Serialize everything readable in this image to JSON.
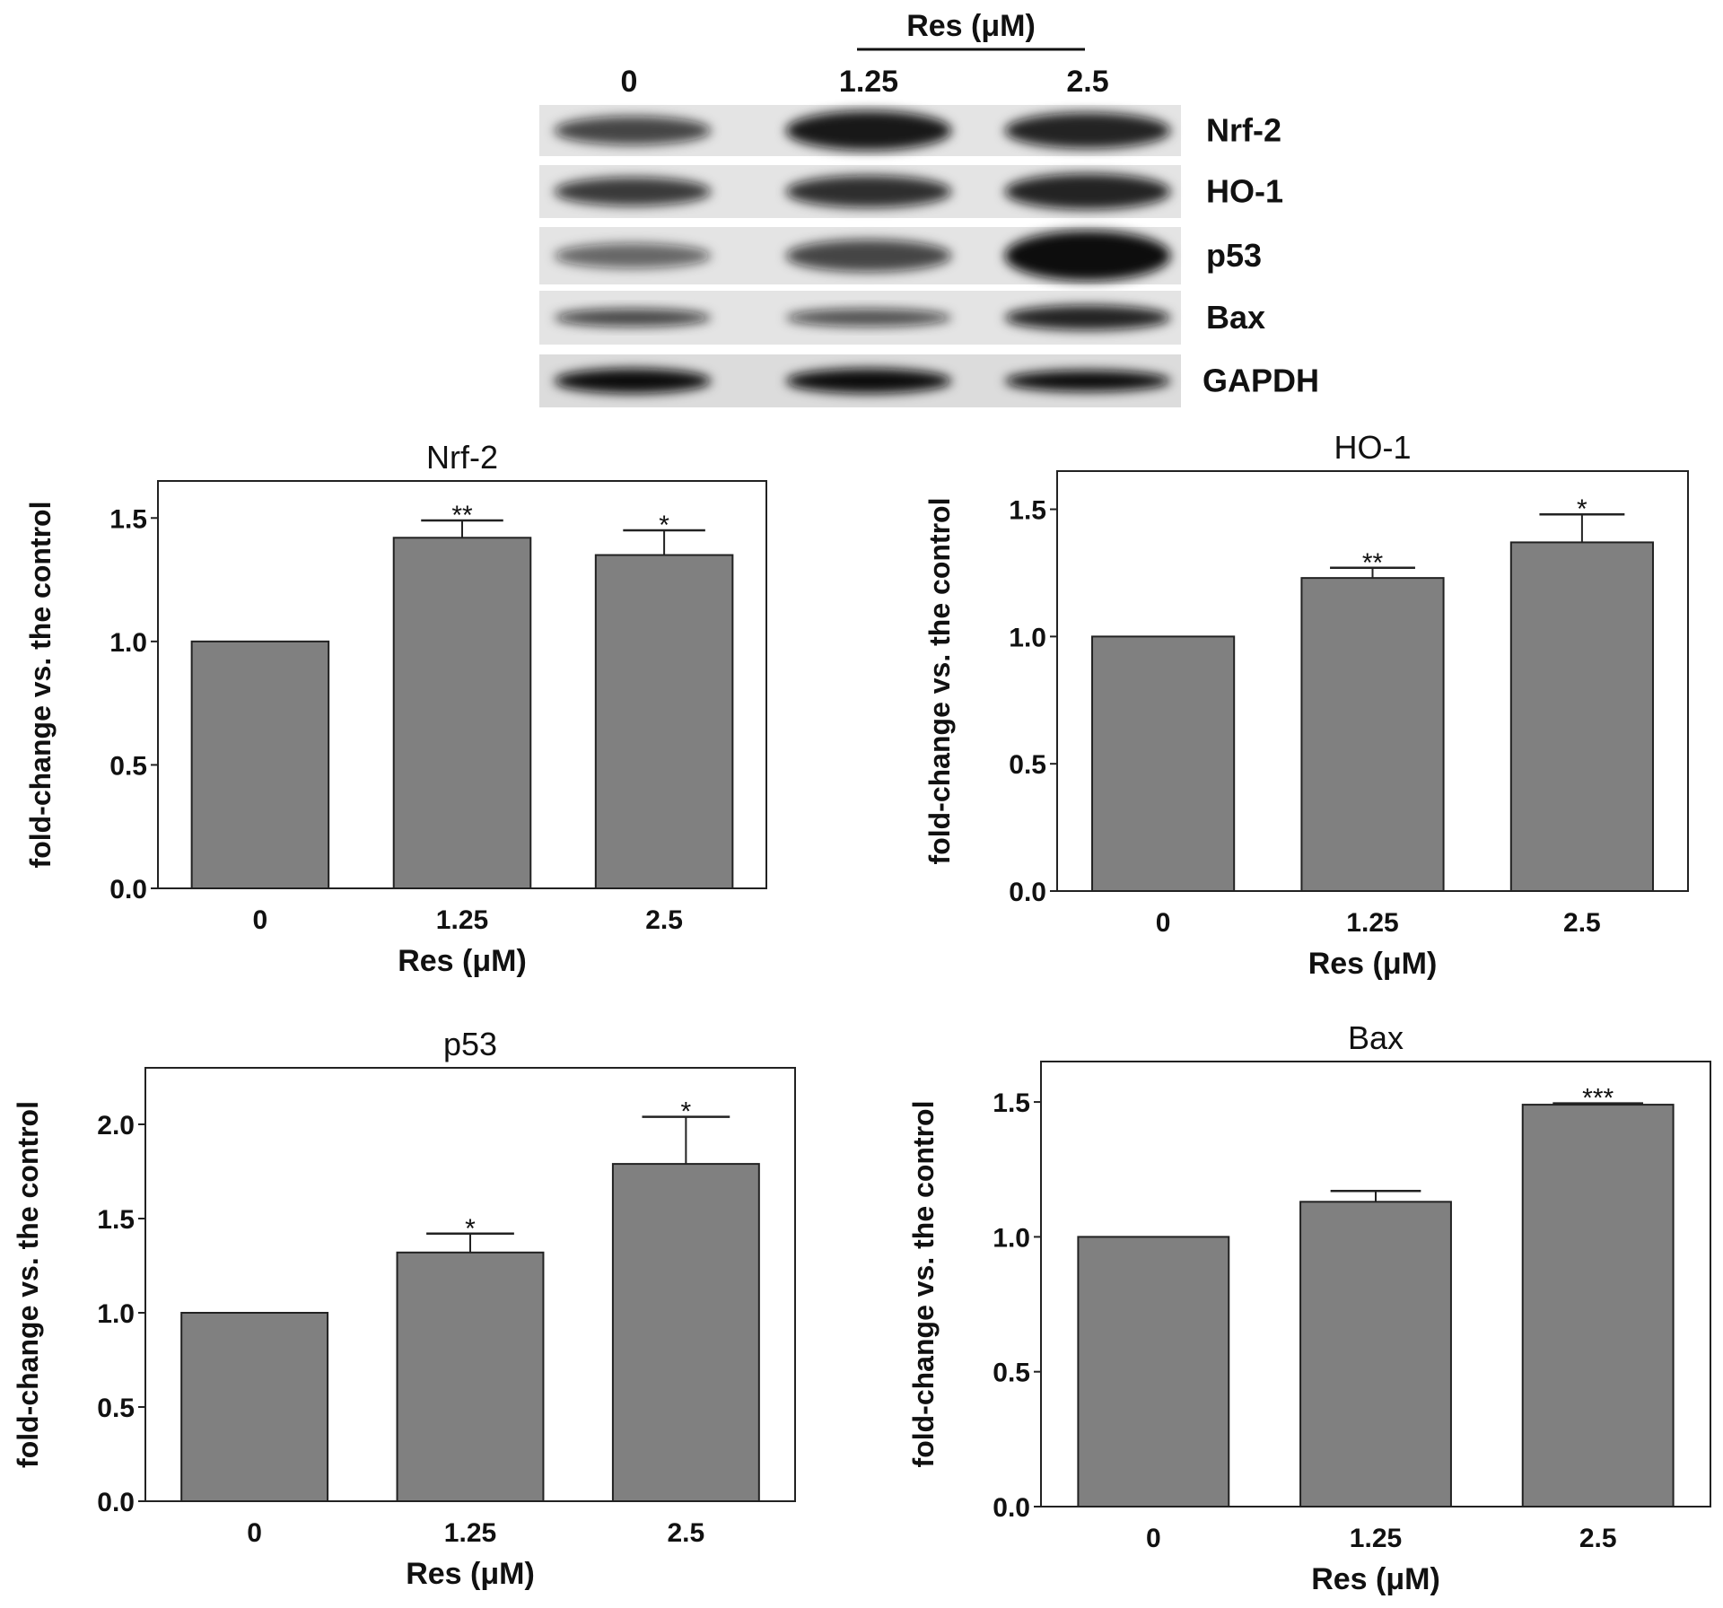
{
  "blot": {
    "header": "Res (μM)",
    "lanes": [
      "0",
      "1.25",
      "2.5"
    ],
    "proteins": [
      "Nrf-2",
      "HO-1",
      "p53",
      "Bax",
      "GAPDH"
    ]
  },
  "chart_data": [
    {
      "type": "bar",
      "title": "Nrf-2",
      "xlabel": "Res (μM)",
      "ylabel": "fold-change vs. the control",
      "categories": [
        "0",
        "1.25",
        "2.5"
      ],
      "values": [
        1.0,
        1.42,
        1.35
      ],
      "errors": [
        0,
        0.07,
        0.1
      ],
      "significance": [
        "",
        "**",
        "*"
      ],
      "ylim": [
        0,
        1.65
      ],
      "yticks": [
        "0.0",
        "0.5",
        "1.0",
        "1.5"
      ],
      "bar_color": "#808080"
    },
    {
      "type": "bar",
      "title": "HO-1",
      "xlabel": "Res (μM)",
      "ylabel": "fold-change vs. the control",
      "categories": [
        "0",
        "1.25",
        "2.5"
      ],
      "values": [
        1.0,
        1.23,
        1.37
      ],
      "errors": [
        0,
        0.04,
        0.11
      ],
      "significance": [
        "",
        "**",
        "*"
      ],
      "ylim": [
        0,
        1.65
      ],
      "yticks": [
        "0.0",
        "0.5",
        "1.0",
        "1.5"
      ],
      "bar_color": "#808080"
    },
    {
      "type": "bar",
      "title": "p53",
      "xlabel": "Res (μM)",
      "ylabel": "fold-change vs. the control",
      "categories": [
        "0",
        "1.25",
        "2.5"
      ],
      "values": [
        1.0,
        1.32,
        1.79
      ],
      "errors": [
        0,
        0.1,
        0.25
      ],
      "significance": [
        "",
        "*",
        "*"
      ],
      "ylim": [
        0,
        2.3
      ],
      "yticks": [
        "0.0",
        "0.5",
        "1.0",
        "1.5",
        "2.0"
      ],
      "bar_color": "#808080"
    },
    {
      "type": "bar",
      "title": "Bax",
      "xlabel": "Res (μM)",
      "ylabel": "fold-change vs. the control",
      "categories": [
        "0",
        "1.25",
        "2.5"
      ],
      "values": [
        1.0,
        1.13,
        1.49
      ],
      "errors": [
        0,
        0.04,
        0.005
      ],
      "significance": [
        "",
        "",
        "***"
      ],
      "ylim": [
        0,
        1.65
      ],
      "yticks": [
        "0.0",
        "0.5",
        "1.0",
        "1.5"
      ],
      "bar_color": "#808080"
    }
  ]
}
